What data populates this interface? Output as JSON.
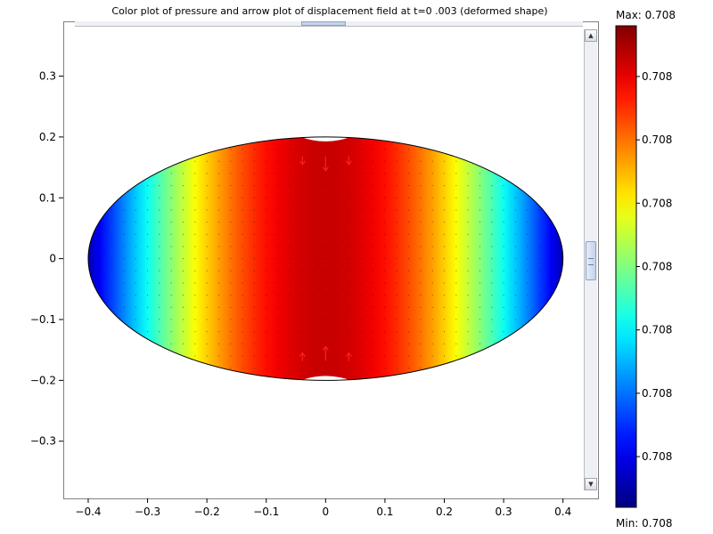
{
  "chart_data": {
    "type": "heatmap",
    "title": "Color plot of pressure and arrow plot of displacement field at t=0 .003 (deformed shape)",
    "xlabel": "",
    "ylabel": "",
    "x_ticks": [
      "−0.4",
      "−0.3",
      "−0.2",
      "−0.1",
      "0",
      "0.1",
      "0.2",
      "0.3",
      "0.4"
    ],
    "x_tick_values": [
      -0.4,
      -0.3,
      -0.2,
      -0.1,
      0,
      0.1,
      0.2,
      0.3,
      0.4
    ],
    "y_ticks": [
      "0.3",
      "0.2",
      "0.1",
      "0",
      "−0.1",
      "−0.2",
      "−0.3"
    ],
    "y_tick_values": [
      0.3,
      0.2,
      0.1,
      0,
      -0.1,
      -0.2,
      -0.3
    ],
    "xlim": [
      -0.442,
      0.435
    ],
    "ylim": [
      -0.394,
      0.39
    ],
    "domain": {
      "shape": "ellipse",
      "center": [
        0,
        0
      ],
      "semi_axis_x": 0.4,
      "semi_axis_y": 0.2
    },
    "colormap": "jet",
    "pressure_profile": "maximum at x=0, decreasing toward ellipse ends",
    "colorbar": {
      "max_label": "Max: 0.708",
      "min_label": "Min: 0.708",
      "tick_labels": [
        "0.708",
        "0.708",
        "0.708",
        "0.708",
        "0.708",
        "0.708",
        "0.708"
      ]
    }
  }
}
